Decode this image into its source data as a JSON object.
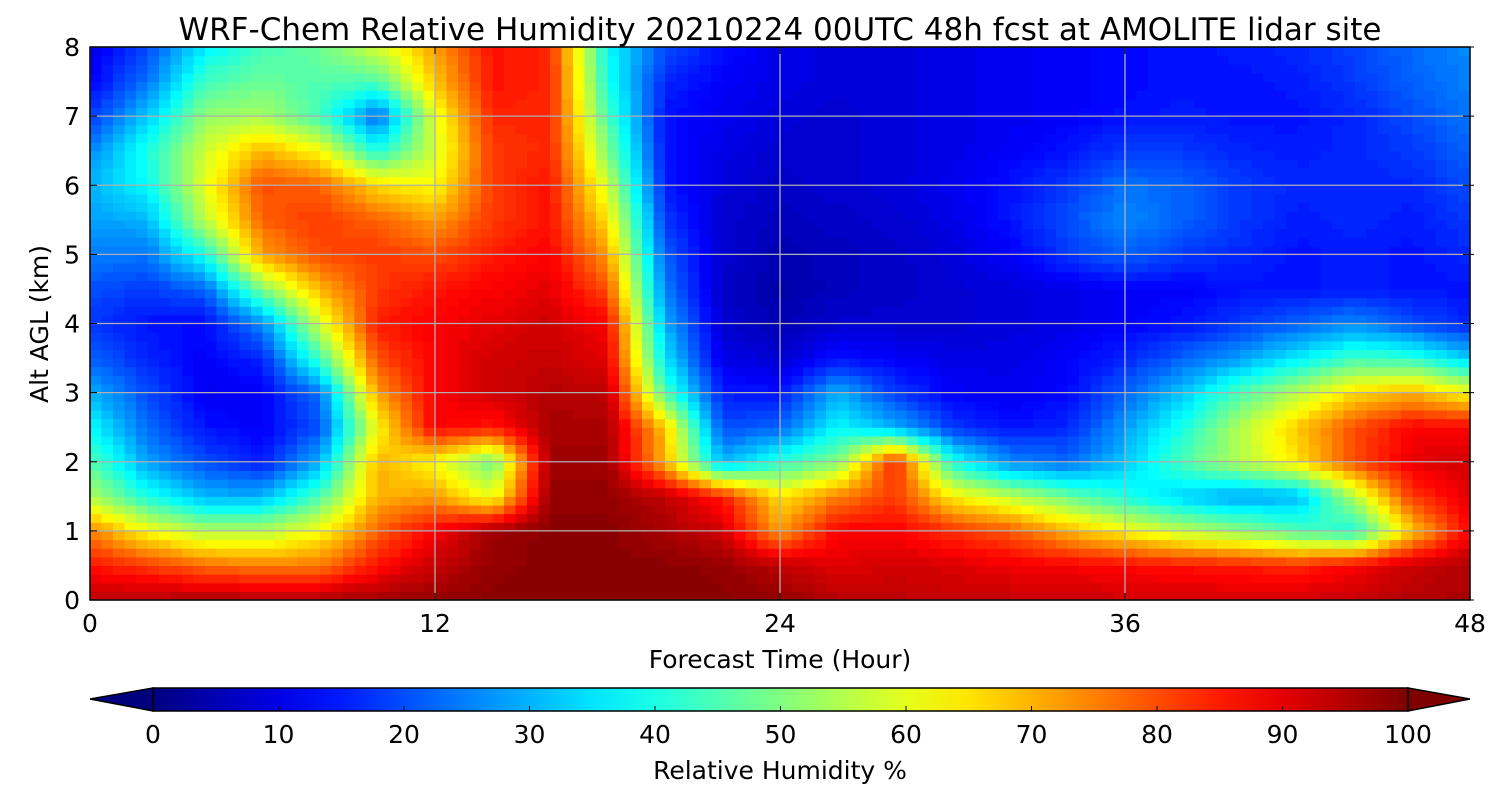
{
  "chart_data": {
    "type": "heatmap",
    "title": "WRF-Chem Relative Humidity 20210224 00UTC 48h fcst at AMOLITE lidar site",
    "xlabel": "Forecast Time (Hour)",
    "ylabel": "Alt AGL (km)",
    "xlim": [
      0,
      48
    ],
    "ylim": [
      0,
      8
    ],
    "x_ticks": [
      "0",
      "12",
      "24",
      "36",
      "48"
    ],
    "y_ticks": [
      "0",
      "1",
      "2",
      "3",
      "4",
      "5",
      "6",
      "7",
      "8"
    ],
    "grid": true,
    "colormap": "jet",
    "colorbar": {
      "label": "Relative Humidity %",
      "range": [
        0,
        100
      ],
      "extend": "both",
      "ticks": [
        "0",
        "10",
        "20",
        "30",
        "40",
        "50",
        "60",
        "70",
        "80",
        "90",
        "100"
      ]
    },
    "x_hours": [
      0,
      2,
      4,
      6,
      8,
      10,
      12,
      14,
      16,
      18,
      20,
      22,
      24,
      26,
      28,
      30,
      32,
      34,
      36,
      38,
      40,
      42,
      44,
      46,
      48
    ],
    "z_km": [
      0,
      0.5,
      1,
      1.5,
      2,
      2.5,
      3,
      3.5,
      4,
      4.5,
      5,
      5.5,
      6,
      6.5,
      7,
      7.5,
      8
    ],
    "rh_percent": [
      [
        94,
        95,
        96,
        96,
        96,
        97,
        98,
        99,
        99,
        99,
        99,
        99,
        98,
        95,
        94,
        93,
        93,
        93,
        92,
        92,
        92,
        92,
        93,
        95,
        96
      ],
      [
        86,
        82,
        77,
        75,
        76,
        86,
        93,
        98,
        99,
        99,
        99,
        98,
        94,
        90,
        92,
        91,
        89,
        88,
        87,
        86,
        85,
        84,
        88,
        93,
        95
      ],
      [
        75,
        62,
        55,
        55,
        62,
        78,
        88,
        97,
        99,
        99,
        96,
        92,
        72,
        88,
        88,
        83,
        79,
        70,
        63,
        56,
        52,
        45,
        40,
        68,
        88
      ],
      [
        55,
        40,
        30,
        30,
        45,
        70,
        72,
        60,
        98,
        98,
        94,
        85,
        65,
        75,
        82,
        64,
        56,
        48,
        40,
        33,
        28,
        30,
        55,
        82,
        90
      ],
      [
        46,
        28,
        20,
        15,
        30,
        70,
        62,
        48,
        97,
        97,
        70,
        30,
        42,
        50,
        85,
        40,
        26,
        23,
        32,
        45,
        55,
        65,
        80,
        90,
        92
      ],
      [
        38,
        23,
        14,
        12,
        20,
        62,
        88,
        85,
        96,
        96,
        68,
        20,
        22,
        38,
        30,
        18,
        14,
        16,
        28,
        40,
        55,
        68,
        80,
        88,
        88
      ],
      [
        30,
        20,
        11,
        12,
        24,
        72,
        88,
        92,
        95,
        94,
        45,
        15,
        14,
        30,
        18,
        12,
        11,
        13,
        22,
        32,
        45,
        55,
        66,
        70,
        62
      ],
      [
        22,
        16,
        12,
        16,
        44,
        80,
        88,
        92,
        93,
        90,
        35,
        10,
        8,
        14,
        12,
        10,
        10,
        12,
        16,
        22,
        28,
        36,
        44,
        42,
        32
      ],
      [
        18,
        14,
        13,
        26,
        58,
        85,
        88,
        90,
        92,
        88,
        30,
        8,
        5,
        8,
        8,
        8,
        9,
        10,
        12,
        14,
        18,
        22,
        26,
        20,
        16
      ],
      [
        20,
        18,
        22,
        50,
        70,
        82,
        86,
        88,
        90,
        80,
        25,
        7,
        4,
        6,
        7,
        8,
        9,
        10,
        12,
        12,
        14,
        14,
        15,
        14,
        14
      ],
      [
        25,
        24,
        40,
        72,
        80,
        82,
        80,
        85,
        88,
        72,
        22,
        8,
        5,
        6,
        7,
        9,
        12,
        18,
        22,
        18,
        16,
        14,
        15,
        14,
        16
      ],
      [
        28,
        30,
        56,
        78,
        82,
        78,
        72,
        82,
        86,
        65,
        18,
        8,
        6,
        7,
        8,
        10,
        14,
        20,
        26,
        22,
        18,
        15,
        16,
        15,
        18
      ],
      [
        30,
        38,
        60,
        80,
        78,
        66,
        62,
        82,
        86,
        58,
        15,
        9,
        7,
        8,
        9,
        11,
        14,
        18,
        24,
        22,
        18,
        16,
        16,
        16,
        20
      ],
      [
        26,
        40,
        58,
        70,
        62,
        40,
        58,
        82,
        84,
        50,
        14,
        10,
        8,
        8,
        9,
        10,
        12,
        14,
        18,
        18,
        16,
        15,
        16,
        18,
        22
      ],
      [
        18,
        32,
        52,
        54,
        44,
        22,
        60,
        84,
        84,
        45,
        14,
        11,
        9,
        8,
        9,
        10,
        11,
        12,
        14,
        15,
        14,
        14,
        16,
        20,
        24
      ],
      [
        12,
        24,
        44,
        48,
        45,
        45,
        68,
        86,
        84,
        40,
        16,
        12,
        10,
        9,
        9,
        10,
        11,
        12,
        13,
        14,
        14,
        15,
        18,
        22,
        25
      ],
      [
        10,
        20,
        36,
        44,
        48,
        58,
        72,
        86,
        84,
        38,
        20,
        14,
        10,
        9,
        9,
        10,
        11,
        12,
        13,
        14,
        15,
        16,
        19,
        23,
        26
      ]
    ]
  }
}
